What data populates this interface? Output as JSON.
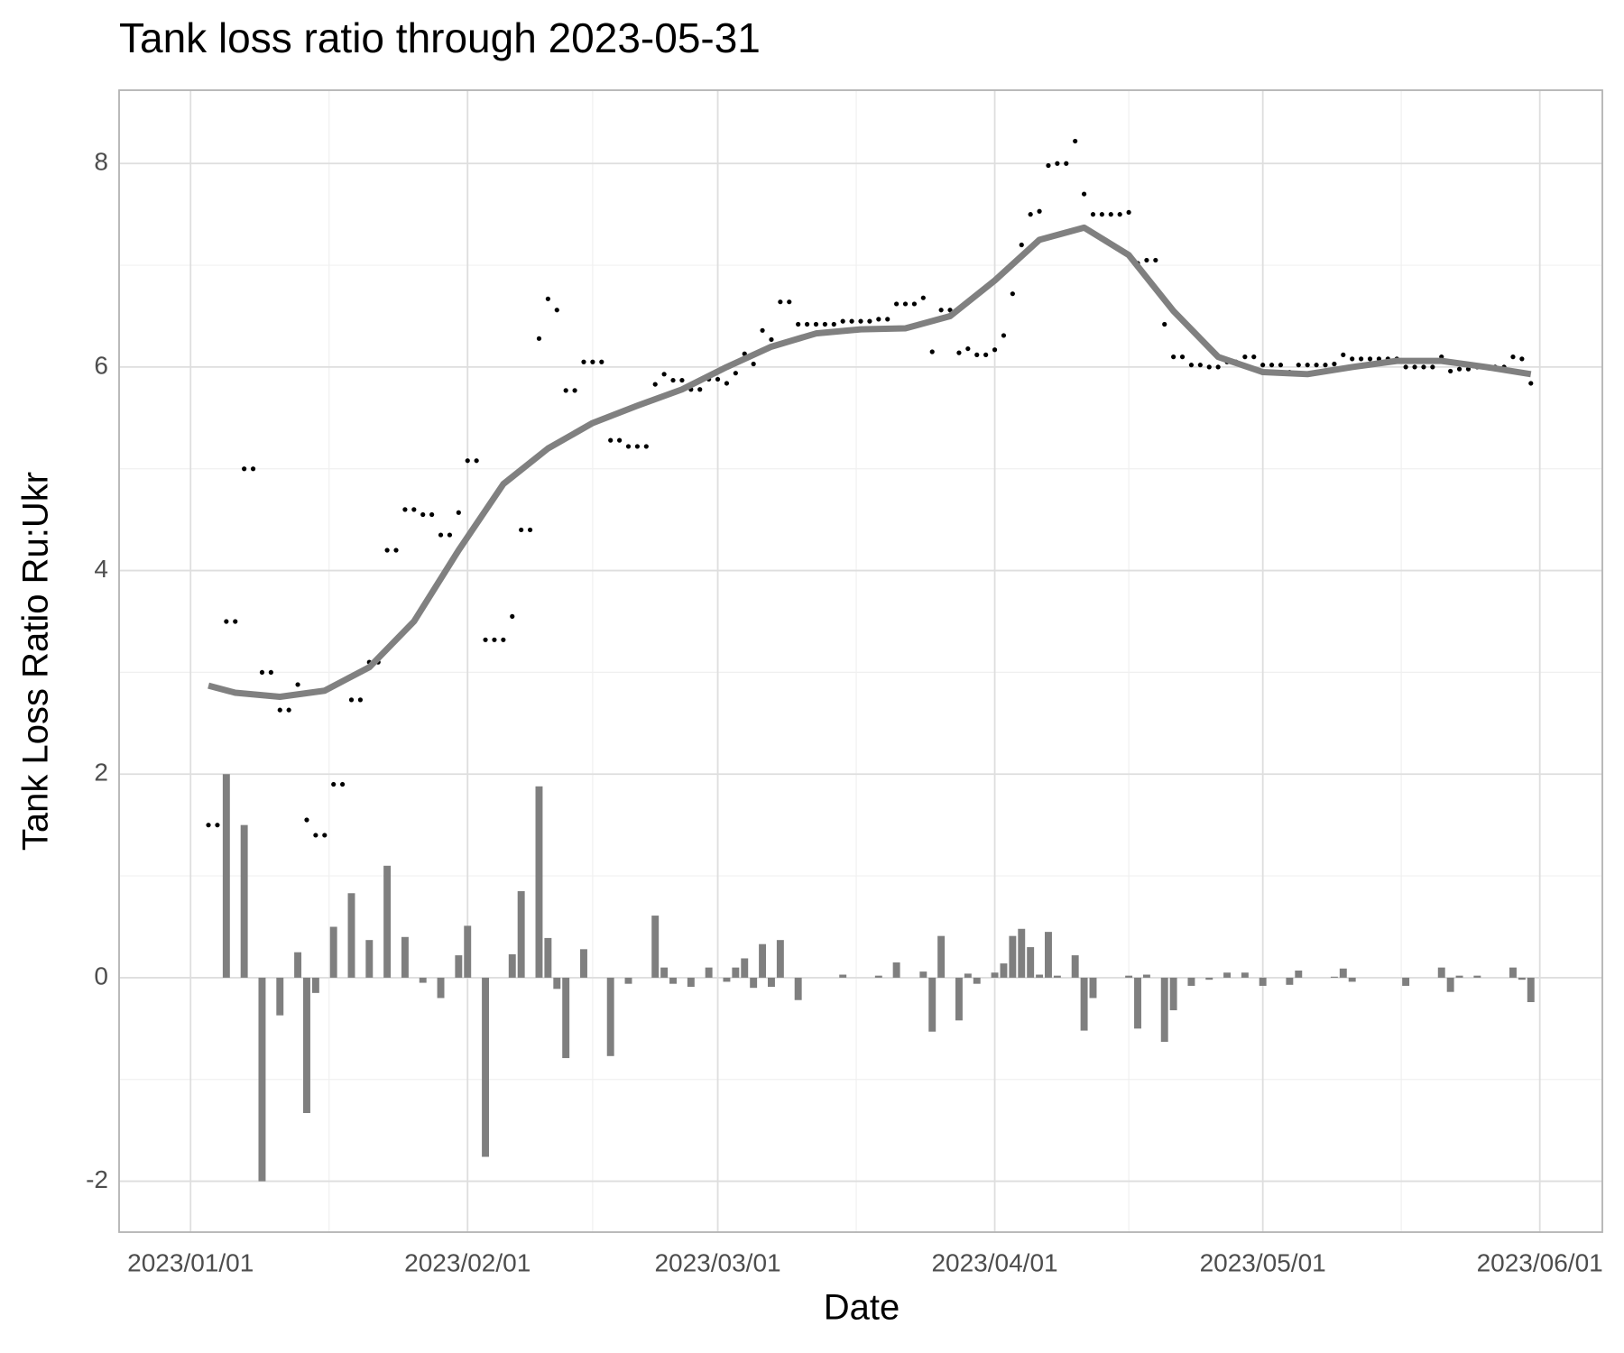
{
  "chart_data": {
    "type": "scatter",
    "title": "Tank loss ratio through 2023-05-31",
    "xlabel": "Date",
    "ylabel": "Tank Loss Ratio Ru:Ukr",
    "xlim": [
      "2022-12-24",
      "2023-06-08"
    ],
    "ylim": [
      -2.5,
      8.72
    ],
    "xticks": [
      {
        "value": "2023-01-01",
        "label": "2023/01/01"
      },
      {
        "value": "2023-02-01",
        "label": "2023/02/01"
      },
      {
        "value": "2023-03-01",
        "label": "2023/03/01"
      },
      {
        "value": "2023-04-01",
        "label": "2023/04/01"
      },
      {
        "value": "2023-05-01",
        "label": "2023/05/01"
      },
      {
        "value": "2023-06-01",
        "label": "2023/06/01"
      }
    ],
    "yticks": [
      -2,
      0,
      2,
      4,
      6,
      8
    ],
    "grid": true,
    "x": [
      "2023-01-03",
      "2023-01-04",
      "2023-01-05",
      "2023-01-06",
      "2023-01-07",
      "2023-01-08",
      "2023-01-09",
      "2023-01-10",
      "2023-01-11",
      "2023-01-12",
      "2023-01-13",
      "2023-01-14",
      "2023-01-15",
      "2023-01-16",
      "2023-01-17",
      "2023-01-18",
      "2023-01-19",
      "2023-01-20",
      "2023-01-21",
      "2023-01-22",
      "2023-01-23",
      "2023-01-24",
      "2023-01-25",
      "2023-01-26",
      "2023-01-27",
      "2023-01-28",
      "2023-01-29",
      "2023-01-30",
      "2023-01-31",
      "2023-02-01",
      "2023-02-02",
      "2023-02-03",
      "2023-02-04",
      "2023-02-05",
      "2023-02-06",
      "2023-02-07",
      "2023-02-08",
      "2023-02-09",
      "2023-02-10",
      "2023-02-11",
      "2023-02-12",
      "2023-02-13",
      "2023-02-14",
      "2023-02-15",
      "2023-02-16",
      "2023-02-17",
      "2023-02-18",
      "2023-02-19",
      "2023-02-20",
      "2023-02-21",
      "2023-02-22",
      "2023-02-23",
      "2023-02-24",
      "2023-02-25",
      "2023-02-26",
      "2023-02-27",
      "2023-02-28",
      "2023-03-01",
      "2023-03-02",
      "2023-03-03",
      "2023-03-04",
      "2023-03-05",
      "2023-03-06",
      "2023-03-07",
      "2023-03-08",
      "2023-03-09",
      "2023-03-10",
      "2023-03-11",
      "2023-03-12",
      "2023-03-13",
      "2023-03-14",
      "2023-03-15",
      "2023-03-16",
      "2023-03-17",
      "2023-03-18",
      "2023-03-19",
      "2023-03-20",
      "2023-03-21",
      "2023-03-22",
      "2023-03-23",
      "2023-03-24",
      "2023-03-25",
      "2023-03-26",
      "2023-03-27",
      "2023-03-28",
      "2023-03-29",
      "2023-03-30",
      "2023-03-31",
      "2023-04-01",
      "2023-04-02",
      "2023-04-03",
      "2023-04-04",
      "2023-04-05",
      "2023-04-06",
      "2023-04-07",
      "2023-04-08",
      "2023-04-09",
      "2023-04-10",
      "2023-04-11",
      "2023-04-12",
      "2023-04-13",
      "2023-04-14",
      "2023-04-15",
      "2023-04-16",
      "2023-04-17",
      "2023-04-18",
      "2023-04-19",
      "2023-04-20",
      "2023-04-21",
      "2023-04-22",
      "2023-04-23",
      "2023-04-24",
      "2023-04-25",
      "2023-04-26",
      "2023-04-27",
      "2023-04-28",
      "2023-04-29",
      "2023-04-30",
      "2023-05-01",
      "2023-05-02",
      "2023-05-03",
      "2023-05-04",
      "2023-05-05",
      "2023-05-06",
      "2023-05-07",
      "2023-05-08",
      "2023-05-09",
      "2023-05-10",
      "2023-05-11",
      "2023-05-12",
      "2023-05-13",
      "2023-05-14",
      "2023-05-15",
      "2023-05-16",
      "2023-05-17",
      "2023-05-18",
      "2023-05-19",
      "2023-05-20",
      "2023-05-21",
      "2023-05-22",
      "2023-05-23",
      "2023-05-24",
      "2023-05-25",
      "2023-05-26",
      "2023-05-27",
      "2023-05-28",
      "2023-05-29",
      "2023-05-30",
      "2023-05-31"
    ],
    "series": [
      {
        "type": "bar",
        "color": "#7f7f7f",
        "values": [
          null,
          0,
          2,
          0,
          1.5,
          0,
          -2,
          0,
          -0.37,
          0,
          0.25,
          -1.33,
          -0.15,
          0,
          0.5,
          0,
          0.83,
          0,
          0.37,
          0,
          1.1,
          0,
          0.4,
          0,
          -0.05,
          0,
          -0.2,
          0,
          0.22,
          0.51,
          0,
          -1.76,
          0,
          0,
          0.23,
          0.85,
          0,
          1.88,
          0.39,
          -0.11,
          -0.79,
          0,
          0.28,
          0,
          0,
          -0.77,
          0,
          -0.06,
          0,
          0,
          0.61,
          0.1,
          -0.06,
          0,
          -0.09,
          0,
          0.1,
          0,
          -0.04,
          0.1,
          0.19,
          -0.1,
          0.33,
          -0.09,
          0.37,
          0,
          -0.22,
          0,
          0,
          0,
          0,
          0.03,
          0,
          0,
          0,
          0.02,
          0,
          0.15,
          0,
          0,
          0.06,
          -0.53,
          0.41,
          0,
          -0.42,
          0.04,
          -0.06,
          0,
          0.05,
          0.14,
          0.41,
          0.48,
          0.3,
          0.03,
          0.45,
          0.02,
          0,
          0.22,
          -0.52,
          -0.2,
          0,
          0,
          0,
          0.02,
          -0.5,
          0.03,
          0,
          -0.63,
          -0.32,
          0,
          -0.08,
          0,
          -0.02,
          0,
          0.05,
          0,
          0.05,
          0,
          -0.08,
          0,
          0,
          -0.07,
          0.07,
          0,
          0,
          0,
          0.01,
          0.09,
          -0.04,
          0,
          0,
          0,
          0,
          0,
          -0.08,
          0,
          0,
          0,
          0.1,
          -0.14,
          0.02,
          0,
          0.02,
          0,
          0,
          0,
          0.1,
          -0.02,
          -0.24
        ]
      },
      {
        "type": "scatter",
        "color": "#000000",
        "values": [
          1.5,
          1.5,
          3.5,
          3.5,
          5,
          5,
          3,
          3,
          2.63,
          2.63,
          2.88,
          1.55,
          1.4,
          1.4,
          1.9,
          1.9,
          2.73,
          2.73,
          3.1,
          3.1,
          4.2,
          4.2,
          4.6,
          4.6,
          4.55,
          4.55,
          4.35,
          4.35,
          4.57,
          5.08,
          5.08,
          3.32,
          3.32,
          3.32,
          3.55,
          4.4,
          4.4,
          6.28,
          6.67,
          6.56,
          5.77,
          5.77,
          6.05,
          6.05,
          6.05,
          5.28,
          5.28,
          5.22,
          5.22,
          5.22,
          5.83,
          5.93,
          5.87,
          5.87,
          5.78,
          5.78,
          5.88,
          5.88,
          5.84,
          5.94,
          6.13,
          6.03,
          6.36,
          6.27,
          6.64,
          6.64,
          6.42,
          6.42,
          6.42,
          6.42,
          6.42,
          6.45,
          6.45,
          6.45,
          6.45,
          6.47,
          6.47,
          6.62,
          6.62,
          6.62,
          6.68,
          6.15,
          6.56,
          6.56,
          6.14,
          6.18,
          6.12,
          6.12,
          6.17,
          6.31,
          6.72,
          7.2,
          7.5,
          7.53,
          7.98,
          8,
          8,
          8.22,
          7.7,
          7.5,
          7.5,
          7.5,
          7.5,
          7.52,
          7.02,
          7.05,
          7.05,
          6.42,
          6.1,
          6.1,
          6.02,
          6.02,
          6,
          6,
          6.05,
          6.05,
          6.1,
          6.1,
          6.02,
          6.02,
          6.02,
          5.95,
          6.02,
          6.02,
          6.02,
          6.02,
          6.03,
          6.12,
          6.08,
          6.08,
          6.08,
          6.08,
          6.08,
          6.08,
          6,
          6,
          6,
          6,
          6.1,
          5.96,
          5.98,
          5.98,
          6,
          6,
          6,
          6,
          6.1,
          6.08,
          5.84
        ]
      },
      {
        "type": "line",
        "color": "#808080",
        "x": [
          "2023-01-03",
          "2023-01-06",
          "2023-01-11",
          "2023-01-16",
          "2023-01-21",
          "2023-01-26",
          "2023-01-31",
          "2023-02-05",
          "2023-02-10",
          "2023-02-15",
          "2023-02-20",
          "2023-02-25",
          "2023-03-02",
          "2023-03-07",
          "2023-03-12",
          "2023-03-17",
          "2023-03-22",
          "2023-03-27",
          "2023-04-01",
          "2023-04-06",
          "2023-04-11",
          "2023-04-16",
          "2023-04-21",
          "2023-04-26",
          "2023-05-01",
          "2023-05-06",
          "2023-05-11",
          "2023-05-16",
          "2023-05-21",
          "2023-05-26",
          "2023-05-31"
        ],
        "values": [
          2.87,
          2.8,
          2.76,
          2.82,
          3.05,
          3.5,
          4.2,
          4.85,
          5.2,
          5.45,
          5.62,
          5.78,
          6,
          6.2,
          6.33,
          6.37,
          6.38,
          6.5,
          6.85,
          7.25,
          7.37,
          7.1,
          6.55,
          6.1,
          5.95,
          5.93,
          6,
          6.06,
          6.06,
          6,
          5.93
        ]
      }
    ]
  }
}
